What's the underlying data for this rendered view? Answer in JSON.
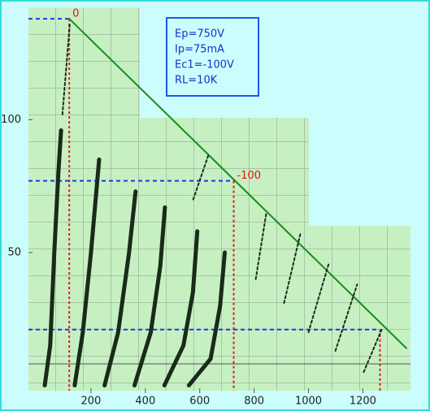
{
  "chart_data": {
    "type": "line",
    "xlim": [
      -30,
      1420
    ],
    "ylim": [
      -2,
      142
    ],
    "xticks": [
      200,
      400,
      600,
      800,
      1000,
      1200
    ],
    "yticks": [
      50,
      100
    ],
    "annotation": [
      "Ep=750V",
      "Ip=75mA",
      "Ec1=-100V",
      "RL=10K"
    ],
    "markers": [
      {
        "x": 120,
        "y": 138,
        "label": "0"
      },
      {
        "x": 725,
        "y": 77,
        "label": "-100"
      },
      {
        "x": 1263,
        "y": 21
      }
    ],
    "series": [
      {
        "color": "#1a8a1a",
        "style": "solid",
        "x": [
          120,
          1360
        ],
        "values": [
          138,
          14
        ]
      },
      {
        "color": "#1a2a1a",
        "style": "thick",
        "x": [
          30,
          50,
          65,
          80,
          90
        ],
        "values": [
          0,
          15,
          50,
          80,
          96
        ]
      },
      {
        "color": "#1a2a1a",
        "style": "thick",
        "x": [
          140,
          170,
          200,
          230
        ],
        "values": [
          0,
          20,
          50,
          85
        ]
      },
      {
        "color": "#1a2a1a",
        "style": "thick",
        "x": [
          250,
          300,
          340,
          364
        ],
        "values": [
          0,
          20,
          50,
          73
        ]
      },
      {
        "color": "#1a2a1a",
        "style": "thick",
        "x": [
          360,
          420,
          455,
          472
        ],
        "values": [
          0,
          20,
          45,
          67
        ]
      },
      {
        "color": "#1a2a1a",
        "style": "thick",
        "x": [
          470,
          540,
          575,
          591
        ],
        "values": [
          0,
          15,
          35,
          58
        ]
      },
      {
        "color": "#1a2a1a",
        "style": "thick",
        "x": [
          560,
          640,
          675,
          692
        ],
        "values": [
          0,
          10,
          30,
          50
        ]
      },
      {
        "color": "#1a2a1a",
        "style": "dashed",
        "x": [
          95,
          122
        ],
        "values": [
          102,
          136
        ]
      },
      {
        "color": "#1a2a1a",
        "style": "dashed",
        "x": [
          576,
          633
        ],
        "values": [
          70,
          87
        ]
      },
      {
        "color": "#1a2a1a",
        "style": "dashed",
        "x": [
          806,
          845
        ],
        "values": [
          40,
          65
        ]
      },
      {
        "color": "#1a2a1a",
        "style": "dashed",
        "x": [
          910,
          970
        ],
        "values": [
          31,
          57
        ]
      },
      {
        "color": "#1a2a1a",
        "style": "dashed",
        "x": [
          1000,
          1075
        ],
        "values": [
          20,
          46
        ]
      },
      {
        "color": "#1a2a1a",
        "style": "dashed",
        "x": [
          1099,
          1179
        ],
        "values": [
          13,
          38
        ]
      },
      {
        "color": "#1a2a1a",
        "style": "dashed",
        "x": [
          1203,
          1269
        ],
        "values": [
          5,
          21
        ]
      }
    ]
  }
}
